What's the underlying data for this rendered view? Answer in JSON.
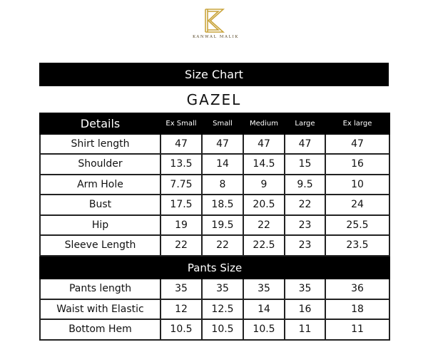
{
  "brand": {
    "name": "KANWAL MALIK",
    "logo_letter": "K",
    "logo_color": "#c9a43a"
  },
  "title": "Size Chart",
  "product": "GAZEL",
  "columns": [
    "Details",
    "Ex Small",
    "Small",
    "Medium",
    "Large",
    "Ex large"
  ],
  "shirt_rows": [
    {
      "label": "Shirt length",
      "values": [
        "47",
        "47",
        "47",
        "47",
        "47"
      ]
    },
    {
      "label": "Shoulder",
      "values": [
        "13.5",
        "14",
        "14.5",
        "15",
        "16"
      ]
    },
    {
      "label": "Arm Hole",
      "values": [
        "7.75",
        "8",
        "9",
        "9.5",
        "10"
      ]
    },
    {
      "label": "Bust",
      "values": [
        "17.5",
        "18.5",
        "20.5",
        "22",
        "24"
      ]
    },
    {
      "label": "Hip",
      "values": [
        "19",
        "19.5",
        "22",
        "23",
        "25.5"
      ]
    },
    {
      "label": "Sleeve Length",
      "values": [
        "22",
        "22",
        "22.5",
        "23",
        "23.5"
      ]
    }
  ],
  "pants_section": "Pants Size",
  "pants_rows": [
    {
      "label": "Pants length",
      "values": [
        "35",
        "35",
        "35",
        "35",
        "36"
      ]
    },
    {
      "label": "Waist with Elastic",
      "values": [
        "12",
        "12.5",
        "14",
        "16",
        "18"
      ]
    },
    {
      "label": "Bottom Hem",
      "values": [
        "10.5",
        "10.5",
        "10.5",
        "11",
        "11"
      ]
    }
  ]
}
